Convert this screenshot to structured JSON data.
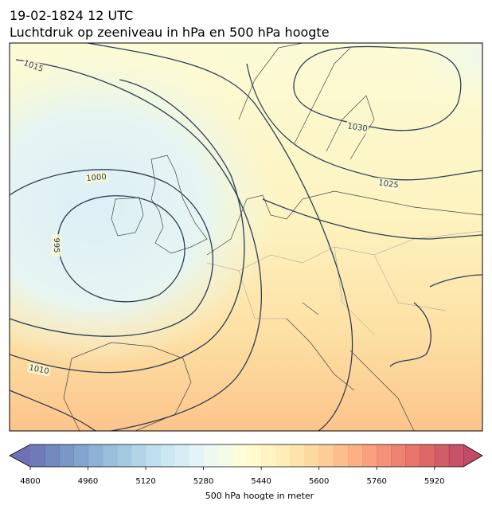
{
  "header": {
    "title": "19-02-1824 12 UTC",
    "subtitle": "Luchtdruk op zeeniveau in hPa en 500 hPa hoogte"
  },
  "isobar_labels": [
    1015,
    1000,
    995,
    1030,
    1025,
    1010
  ],
  "colorbar": {
    "label": "500 hPa hoogte in meter",
    "lim": [
      4800,
      6000
    ],
    "step": 40,
    "ticks": [
      4800,
      4960,
      5120,
      5280,
      5440,
      5600,
      5760,
      5920
    ],
    "colormap": [
      "#313695",
      "#4575b4",
      "#74add1",
      "#abd9e9",
      "#e0f3f8",
      "#ffffbf",
      "#fee090",
      "#fdae61",
      "#f46d43",
      "#d73027",
      "#a50026"
    ],
    "opacity": 0.7
  }
}
